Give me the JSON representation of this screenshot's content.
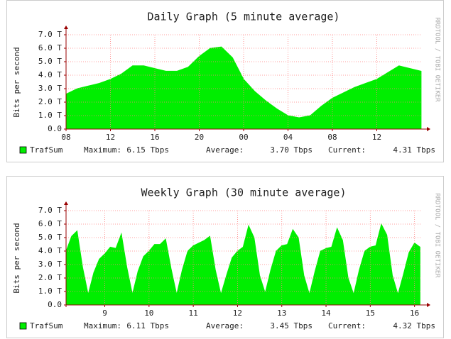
{
  "chart_data": [
    {
      "type": "area",
      "title": "Daily Graph (5 minute average)",
      "y_label": "Bits per second",
      "watermark": "RRDTOOL / TOBI OETIKER",
      "x": [
        0,
        1,
        2,
        3,
        4,
        5,
        6,
        7,
        8,
        9,
        10,
        11,
        12,
        13,
        14,
        15,
        16,
        17,
        18,
        19,
        20,
        21,
        22,
        23,
        24,
        25,
        26,
        27,
        28,
        29,
        30,
        31,
        32
      ],
      "xlim": [
        0,
        32
      ],
      "xticks": [
        {
          "value": 0,
          "label": "08"
        },
        {
          "value": 4,
          "label": "12"
        },
        {
          "value": 8,
          "label": "16"
        },
        {
          "value": 12,
          "label": "20"
        },
        {
          "value": 16,
          "label": "00"
        },
        {
          "value": 20,
          "label": "04"
        },
        {
          "value": 24,
          "label": "08"
        },
        {
          "value": 28,
          "label": "12"
        }
      ],
      "ylim": [
        0,
        7
      ],
      "yticks": [
        {
          "value": 0,
          "label": "0.0"
        },
        {
          "value": 1,
          "label": "1.0 T"
        },
        {
          "value": 2,
          "label": "2.0 T"
        },
        {
          "value": 3,
          "label": "3.0 T"
        },
        {
          "value": 4,
          "label": "4.0 T"
        },
        {
          "value": 5,
          "label": "5.0 T"
        },
        {
          "value": 6,
          "label": "6.0 T"
        },
        {
          "value": 7,
          "label": "7.0 T"
        }
      ],
      "grid": true,
      "series": [
        {
          "name": "TrafSum",
          "color": "#00ee00",
          "values": [
            2.6,
            3.0,
            3.2,
            3.4,
            3.7,
            4.1,
            4.7,
            4.7,
            4.5,
            4.3,
            4.3,
            4.6,
            5.4,
            6.0,
            6.1,
            5.3,
            3.7,
            2.8,
            2.1,
            1.5,
            1.0,
            0.85,
            1.0,
            1.7,
            2.3,
            2.7,
            3.1,
            3.4,
            3.7,
            4.2,
            4.7,
            4.5,
            4.3
          ]
        }
      ],
      "legend_stats": [
        {
          "label": "Maximum:",
          "value": "6.15 Tbps"
        },
        {
          "label": "Average:",
          "value": "3.70 Tbps"
        },
        {
          "label": "Current:",
          "value": "4.31 Tbps"
        }
      ]
    },
    {
      "type": "area",
      "title": "Weekly Graph (30 minute average)",
      "y_label": "Bits per second",
      "watermark": "RRDTOOL / TOBI OETIKER",
      "x": [
        8.125,
        8.25,
        8.375,
        8.5,
        8.625,
        8.75,
        8.875,
        9,
        9.125,
        9.25,
        9.375,
        9.5,
        9.625,
        9.75,
        9.875,
        10,
        10.125,
        10.25,
        10.375,
        10.5,
        10.625,
        10.75,
        10.875,
        11,
        11.125,
        11.25,
        11.375,
        11.5,
        11.625,
        11.75,
        11.875,
        12,
        12.125,
        12.25,
        12.375,
        12.5,
        12.625,
        12.75,
        12.875,
        13,
        13.125,
        13.25,
        13.375,
        13.5,
        13.625,
        13.75,
        13.875,
        14,
        14.125,
        14.25,
        14.375,
        14.5,
        14.625,
        14.75,
        14.875,
        15,
        15.125,
        15.25,
        15.375,
        15.5,
        15.625,
        15.75,
        15.875,
        16,
        16.125
      ],
      "xlim": [
        8.125,
        16.15
      ],
      "xticks": [
        9,
        10,
        11,
        12,
        13,
        14,
        15,
        16
      ],
      "ylim": [
        0,
        7
      ],
      "yticks": [
        {
          "value": 0,
          "label": "0.0"
        },
        {
          "value": 1,
          "label": "1.0 T"
        },
        {
          "value": 2,
          "label": "2.0 T"
        },
        {
          "value": 3,
          "label": "3.0 T"
        },
        {
          "value": 4,
          "label": "4.0 T"
        },
        {
          "value": 5,
          "label": "5.0 T"
        },
        {
          "value": 6,
          "label": "6.0 T"
        },
        {
          "value": 7,
          "label": "7.0 T"
        }
      ],
      "grid": true,
      "series": [
        {
          "name": "TrafSum",
          "color": "#00ee00",
          "values": [
            4.0,
            5.1,
            5.5,
            2.8,
            0.8,
            2.4,
            3.4,
            3.8,
            4.3,
            4.2,
            5.3,
            2.8,
            0.8,
            2.5,
            3.6,
            4.0,
            4.5,
            4.5,
            4.9,
            2.7,
            0.8,
            2.6,
            4.0,
            4.4,
            4.6,
            4.8,
            5.1,
            2.6,
            0.8,
            2.2,
            3.5,
            4.0,
            4.3,
            5.9,
            5.0,
            2.2,
            0.9,
            2.6,
            4.0,
            4.4,
            4.5,
            5.6,
            5.0,
            2.2,
            0.8,
            2.5,
            4.0,
            4.2,
            4.3,
            5.7,
            4.8,
            2.0,
            0.8,
            2.6,
            4.0,
            4.3,
            4.4,
            6.0,
            5.2,
            2.2,
            0.8,
            2.3,
            3.9,
            4.6,
            4.3
          ]
        }
      ],
      "legend_stats": [
        {
          "label": "Maximum:",
          "value": "6.11 Tbps"
        },
        {
          "label": "Average:",
          "value": "3.45 Tbps"
        },
        {
          "label": "Current:",
          "value": "4.32 Tbps"
        }
      ]
    }
  ]
}
